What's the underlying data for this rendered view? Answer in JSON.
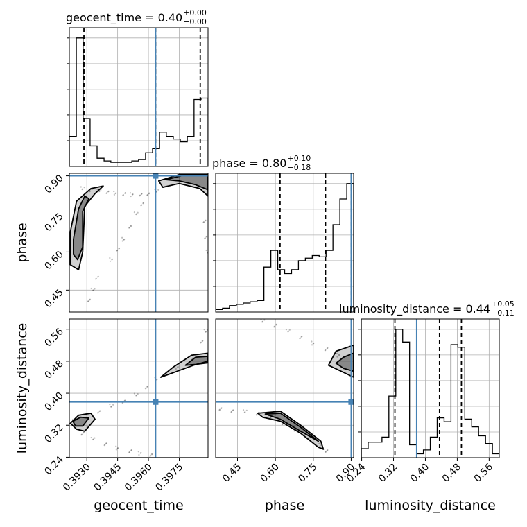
{
  "colors": {
    "truth": "#4682b4",
    "grid": "#b0b0b0",
    "ink": "#000000"
  },
  "chart_data": {
    "type": "corner",
    "parameters": [
      "geocent_time",
      "phase",
      "luminosity_distance"
    ],
    "truths": {
      "geocent_time": 0.39635,
      "phase": 0.9,
      "luminosity_distance": 0.378
    },
    "ranges": {
      "geocent_time": [
        0.39215,
        0.3989
      ],
      "phase": [
        0.3635,
        0.9098
      ],
      "luminosity_distance": [
        0.239,
        0.5855
      ]
    },
    "ticks": {
      "geocent_time": {
        "values": [
          0.393,
          0.3945,
          0.396,
          0.3975
        ],
        "labels": [
          "0.3930",
          "0.3945",
          "0.3960",
          "0.3975"
        ]
      },
      "phase": {
        "values": [
          0.45,
          0.6,
          0.75,
          0.9
        ],
        "labels": [
          "0.45",
          "0.60",
          "0.75",
          "0.90"
        ]
      },
      "luminosity_distance": {
        "values": [
          0.24,
          0.32,
          0.4,
          0.48,
          0.56
        ],
        "labels": [
          "0.24",
          "0.32",
          "0.40",
          "0.48",
          "0.56"
        ]
      }
    },
    "titles": [
      {
        "parameter": "geocent_time",
        "text": "geocent_time = 0.40",
        "upper": "+0.00",
        "lower": "−0.00"
      },
      {
        "parameter": "phase",
        "text": "phase = 0.80",
        "upper": "+0.10",
        "lower": "−0.18"
      },
      {
        "parameter": "luminosity_distance",
        "text": "luminosity_distance = 0.44",
        "upper": "+0.05",
        "lower": "−0.11"
      }
    ],
    "quantiles": {
      "geocent_time": [
        0.39286,
        0.39635,
        0.39852
      ],
      "phase": [
        0.6185,
        0.7985,
        0.9004
      ],
      "luminosity_distance": [
        0.3235,
        0.4355,
        0.4905
      ]
    },
    "histograms": {
      "geocent_time": {
        "edges": [
          0.39215,
          0.39249,
          0.39282,
          0.39316,
          0.3935,
          0.39384,
          0.39417,
          0.39451,
          0.39485,
          0.39519,
          0.39552,
          0.39586,
          0.3962,
          0.39654,
          0.39687,
          0.39721,
          0.39755,
          0.39789,
          0.39822,
          0.39856,
          0.3989
        ],
        "counts": [
          0.22,
          0.94,
          0.35,
          0.15,
          0.06,
          0.04,
          0.03,
          0.03,
          0.03,
          0.04,
          0.05,
          0.1,
          0.13,
          0.25,
          0.22,
          0.2,
          0.18,
          0.22,
          0.49,
          0.5
        ]
      },
      "phase": {
        "edges": [
          0.3635,
          0.3908,
          0.4181,
          0.4455,
          0.4728,
          0.5001,
          0.5274,
          0.5547,
          0.5821,
          0.6094,
          0.6367,
          0.664,
          0.6913,
          0.7186,
          0.746,
          0.7733,
          0.8006,
          0.8279,
          0.8552,
          0.8826,
          0.9098
        ],
        "counts": [
          0.02,
          0.03,
          0.05,
          0.06,
          0.07,
          0.08,
          0.09,
          0.35,
          0.48,
          0.33,
          0.3,
          0.33,
          0.4,
          0.42,
          0.44,
          0.43,
          0.48,
          0.68,
          0.88,
          1.0
        ]
      },
      "luminosity_distance": {
        "edges": [
          0.239,
          0.2563,
          0.2737,
          0.291,
          0.3083,
          0.3257,
          0.343,
          0.3603,
          0.3777,
          0.395,
          0.4123,
          0.4296,
          0.447,
          0.4643,
          0.4816,
          0.499,
          0.5163,
          0.5336,
          0.551,
          0.5683,
          0.5855
        ],
        "counts": [
          0.07,
          0.12,
          0.12,
          0.16,
          0.48,
          1.0,
          0.9,
          0.1,
          0.03,
          0.06,
          0.16,
          0.31,
          0.28,
          0.88,
          0.86,
          0.3,
          0.24,
          0.17,
          0.11,
          0.03
        ]
      }
    },
    "pairs": [
      {
        "x": "geocent_time",
        "y": "phase",
        "samples": [
          [
            0.3928,
            0.85
          ],
          [
            0.3932,
            0.845
          ],
          [
            0.3936,
            0.84
          ],
          [
            0.394,
            0.836
          ],
          [
            0.3944,
            0.832
          ],
          [
            0.3948,
            0.828
          ],
          [
            0.3952,
            0.826
          ],
          [
            0.3956,
            0.825
          ],
          [
            0.396,
            0.83
          ],
          [
            0.3964,
            0.84
          ],
          [
            0.3957,
            0.79
          ],
          [
            0.3954,
            0.75
          ],
          [
            0.3951,
            0.7
          ],
          [
            0.3948,
            0.65
          ],
          [
            0.3945,
            0.61
          ],
          [
            0.3942,
            0.57
          ],
          [
            0.3987,
            0.72
          ],
          [
            0.3988,
            0.66
          ],
          [
            0.3989,
            0.6
          ],
          [
            0.3935,
            0.5
          ],
          [
            0.3933,
            0.45
          ],
          [
            0.3931,
            0.41
          ]
        ],
        "contours": [
          {
            "level": "outer",
            "points": [
              [
                0.3922,
                0.68
              ],
              [
                0.3925,
                0.8
              ],
              [
                0.3932,
                0.85
              ],
              [
                0.3938,
                0.86
              ],
              [
                0.3934,
                0.83
              ],
              [
                0.3929,
                0.78
              ],
              [
                0.3928,
                0.6
              ],
              [
                0.3926,
                0.53
              ],
              [
                0.3922,
                0.55
              ]
            ]
          },
          {
            "level": "inner",
            "points": [
              [
                0.39235,
                0.65
              ],
              [
                0.3926,
                0.77
              ],
              [
                0.3929,
                0.82
              ],
              [
                0.3931,
                0.81
              ],
              [
                0.3928,
                0.76
              ],
              [
                0.3928,
                0.62
              ],
              [
                0.39255,
                0.57
              ],
              [
                0.39235,
                0.59
              ]
            ]
          },
          {
            "level": "outer",
            "points": [
              [
                0.3965,
                0.88
              ],
              [
                0.3975,
                0.905
              ],
              [
                0.3989,
                0.905
              ],
              [
                0.3989,
                0.82
              ],
              [
                0.3985,
                0.85
              ],
              [
                0.3975,
                0.87
              ],
              [
                0.3967,
                0.855
              ]
            ]
          },
          {
            "level": "inner",
            "points": [
              [
                0.39685,
                0.885
              ],
              [
                0.3976,
                0.9
              ],
              [
                0.3989,
                0.9
              ],
              [
                0.3989,
                0.845
              ],
              [
                0.3983,
                0.865
              ],
              [
                0.3975,
                0.88
              ]
            ]
          }
        ]
      },
      {
        "x": "geocent_time",
        "y": "luminosity_distance",
        "samples": [
          [
            0.3924,
            0.33
          ],
          [
            0.3928,
            0.3
          ],
          [
            0.3933,
            0.285
          ],
          [
            0.3939,
            0.273
          ],
          [
            0.3945,
            0.263
          ],
          [
            0.3951,
            0.255
          ],
          [
            0.3956,
            0.25
          ],
          [
            0.3961,
            0.245
          ],
          [
            0.3936,
            0.355
          ],
          [
            0.3942,
            0.368
          ],
          [
            0.3948,
            0.38
          ],
          [
            0.3954,
            0.395
          ],
          [
            0.3959,
            0.415
          ],
          [
            0.3964,
            0.435
          ],
          [
            0.3968,
            0.45
          ],
          [
            0.3974,
            0.465
          ],
          [
            0.3981,
            0.485
          ],
          [
            0.3986,
            0.53
          ],
          [
            0.3988,
            0.555
          ]
        ],
        "contours": [
          {
            "level": "outer",
            "points": [
              [
                0.3922,
                0.325
              ],
              [
                0.3926,
                0.345
              ],
              [
                0.3932,
                0.35
              ],
              [
                0.3934,
                0.335
              ],
              [
                0.3929,
                0.305
              ],
              [
                0.3925,
                0.31
              ]
            ]
          },
          {
            "level": "inner",
            "points": [
              [
                0.39232,
                0.33
              ],
              [
                0.3927,
                0.34
              ],
              [
                0.3931,
                0.338
              ],
              [
                0.3928,
                0.318
              ],
              [
                0.39245,
                0.318
              ]
            ]
          },
          {
            "level": "outer",
            "points": [
              [
                0.3966,
                0.44
              ],
              [
                0.3972,
                0.465
              ],
              [
                0.3981,
                0.495
              ],
              [
                0.3989,
                0.5
              ],
              [
                0.3989,
                0.48
              ],
              [
                0.3982,
                0.47
              ],
              [
                0.3974,
                0.455
              ]
            ]
          },
          {
            "level": "inner",
            "points": [
              [
                0.3978,
                0.47
              ],
              [
                0.3983,
                0.49
              ],
              [
                0.3989,
                0.492
              ],
              [
                0.3989,
                0.476
              ],
              [
                0.3983,
                0.472
              ]
            ]
          }
        ]
      },
      {
        "x": "phase",
        "y": "luminosity_distance",
        "samples": [
          [
            0.55,
            0.58
          ],
          [
            0.6,
            0.57
          ],
          [
            0.65,
            0.555
          ],
          [
            0.7,
            0.54
          ],
          [
            0.75,
            0.525
          ],
          [
            0.8,
            0.51
          ],
          [
            0.85,
            0.495
          ],
          [
            0.38,
            0.36
          ],
          [
            0.43,
            0.357
          ],
          [
            0.48,
            0.354
          ],
          [
            0.53,
            0.35
          ],
          [
            0.58,
            0.34
          ],
          [
            0.63,
            0.325
          ],
          [
            0.68,
            0.31
          ],
          [
            0.73,
            0.29
          ],
          [
            0.78,
            0.27
          ],
          [
            0.8,
            0.255
          ]
        ],
        "contours": [
          {
            "level": "outer",
            "points": [
              [
                0.81,
                0.47
              ],
              [
                0.84,
                0.505
              ],
              [
                0.9098,
                0.52
              ],
              [
                0.9098,
                0.44
              ],
              [
                0.86,
                0.455
              ]
            ]
          },
          {
            "level": "inner",
            "points": [
              [
                0.84,
                0.475
              ],
              [
                0.87,
                0.49
              ],
              [
                0.9098,
                0.5
              ],
              [
                0.9098,
                0.455
              ],
              [
                0.87,
                0.462
              ]
            ]
          },
          {
            "level": "outer",
            "points": [
              [
                0.53,
                0.35
              ],
              [
                0.62,
                0.355
              ],
              [
                0.7,
                0.32
              ],
              [
                0.78,
                0.28
              ],
              [
                0.79,
                0.26
              ],
              [
                0.77,
                0.265
              ],
              [
                0.7,
                0.3
              ],
              [
                0.62,
                0.33
              ],
              [
                0.55,
                0.34
              ]
            ]
          },
          {
            "level": "inner",
            "points": [
              [
                0.56,
                0.348
              ],
              [
                0.62,
                0.35
              ],
              [
                0.7,
                0.315
              ],
              [
                0.77,
                0.28
              ],
              [
                0.7,
                0.305
              ],
              [
                0.62,
                0.335
              ]
            ]
          }
        ]
      }
    ]
  }
}
